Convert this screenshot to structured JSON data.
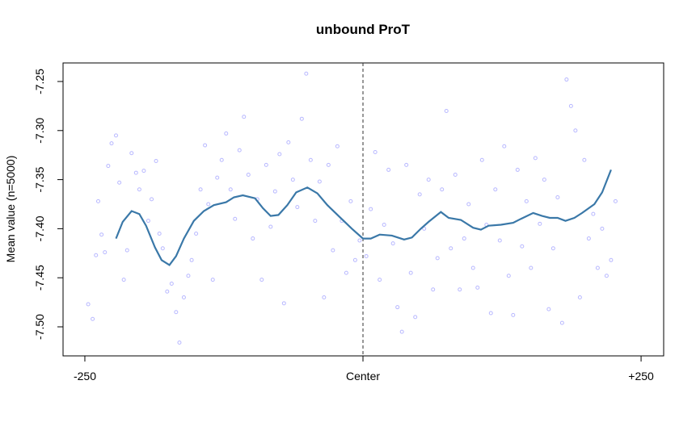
{
  "chart_data": {
    "type": "scatter",
    "title": "unbound ProT",
    "ylabel": "Mean value (n=5000)",
    "xlim": [
      -269.6,
      270.3
    ],
    "ylim": [
      -7.5296,
      -7.2311
    ],
    "xticks": [
      -250,
      {
        "value": 0,
        "label": "Center"
      },
      {
        "value": 250,
        "label": "+250"
      }
    ],
    "yticks": [
      -7.25,
      {
        "value": -7.3,
        "label": "-7.30"
      },
      -7.35,
      {
        "value": -7.4,
        "label": "-7.40"
      },
      -7.45,
      {
        "value": -7.5,
        "label": "-7.50"
      }
    ],
    "vline": 0,
    "points": {
      "color": "#b8b8ff",
      "x": [
        -247,
        -243,
        -240,
        -238,
        -235,
        -232,
        -229,
        -226,
        -222,
        -219,
        -215,
        -212,
        -208,
        -204,
        -201,
        -197,
        -193,
        -190,
        -186,
        -183,
        -180,
        -176,
        -172,
        -168,
        -165,
        -161,
        -157,
        -154,
        -150,
        -146,
        -142,
        -139,
        -135,
        -131,
        -127,
        -123,
        -119,
        -115,
        -111,
        -107,
        -103,
        -99,
        -95,
        -91,
        -87,
        -83,
        -79,
        -75,
        -71,
        -67,
        -63,
        -59,
        -55,
        -51,
        -47,
        -43,
        -39,
        -35,
        -31,
        -27,
        -23,
        -19,
        -15,
        -11,
        -7,
        -3,
        3,
        7,
        11,
        15,
        19,
        23,
        27,
        31,
        35,
        39,
        43,
        47,
        51,
        55,
        59,
        63,
        67,
        71,
        75,
        79,
        83,
        87,
        91,
        95,
        99,
        103,
        107,
        111,
        115,
        119,
        123,
        127,
        131,
        135,
        139,
        143,
        147,
        151,
        155,
        159,
        163,
        167,
        171,
        175,
        179,
        183,
        187,
        191,
        195,
        199,
        203,
        207,
        211,
        215,
        219,
        223,
        227
      ],
      "values": [
        -7.477,
        -7.492,
        -7.427,
        -7.372,
        -7.406,
        -7.424,
        -7.336,
        -7.313,
        -7.305,
        -7.353,
        -7.452,
        -7.422,
        -7.323,
        -7.343,
        -7.36,
        -7.341,
        -7.392,
        -7.37,
        -7.331,
        -7.405,
        -7.42,
        -7.464,
        -7.456,
        -7.485,
        -7.516,
        -7.47,
        -7.448,
        -7.432,
        -7.405,
        -7.36,
        -7.315,
        -7.375,
        -7.452,
        -7.348,
        -7.33,
        -7.303,
        -7.36,
        -7.39,
        -7.32,
        -7.286,
        -7.345,
        -7.41,
        -7.37,
        -7.452,
        -7.335,
        -7.398,
        -7.362,
        -7.324,
        -7.476,
        -7.312,
        -7.35,
        -7.378,
        -7.288,
        -7.242,
        -7.33,
        -7.392,
        -7.352,
        -7.47,
        -7.335,
        -7.422,
        -7.316,
        -7.392,
        -7.445,
        -7.372,
        -7.432,
        -7.412,
        -7.428,
        -7.38,
        -7.322,
        -7.452,
        -7.396,
        -7.34,
        -7.415,
        -7.48,
        -7.505,
        -7.335,
        -7.445,
        -7.49,
        -7.365,
        -7.4,
        -7.35,
        -7.462,
        -7.43,
        -7.36,
        -7.28,
        -7.42,
        -7.345,
        -7.462,
        -7.41,
        -7.375,
        -7.44,
        -7.46,
        -7.33,
        -7.396,
        -7.486,
        -7.36,
        -7.412,
        -7.316,
        -7.448,
        -7.488,
        -7.34,
        -7.418,
        -7.372,
        -7.44,
        -7.328,
        -7.395,
        -7.35,
        -7.482,
        -7.42,
        -7.368,
        -7.496,
        -7.248,
        -7.275,
        -7.3,
        -7.47,
        -7.33,
        -7.41,
        -7.385,
        -7.44,
        -7.4,
        -7.448,
        -7.432,
        -7.372
      ]
    },
    "line": {
      "color": "#3a78a8",
      "x": [
        -222,
        -216,
        -208,
        -201,
        -195,
        -187,
        -181,
        -174,
        -168,
        -161,
        -152,
        -143,
        -134,
        -123,
        -116,
        -108,
        -97,
        -90,
        -83,
        -76,
        -68,
        -60,
        -50,
        -41,
        -32,
        -21,
        -10,
        0,
        7,
        15,
        26,
        37,
        44,
        52,
        59,
        70,
        77,
        88,
        99,
        106,
        113,
        124,
        135,
        142,
        153,
        161,
        168,
        175,
        182,
        190,
        197,
        208,
        215,
        223
      ],
      "values": [
        -7.41,
        -7.393,
        -7.382,
        -7.385,
        -7.397,
        -7.419,
        -7.432,
        -7.437,
        -7.428,
        -7.41,
        -7.392,
        -7.382,
        -7.376,
        -7.373,
        -7.368,
        -7.366,
        -7.369,
        -7.379,
        -7.387,
        -7.386,
        -7.376,
        -7.363,
        -7.358,
        -7.364,
        -7.376,
        -7.388,
        -7.4,
        -7.41,
        -7.41,
        -7.406,
        -7.407,
        -7.411,
        -7.409,
        -7.4,
        -7.393,
        -7.383,
        -7.389,
        -7.391,
        -7.399,
        -7.401,
        -7.397,
        -7.396,
        -7.394,
        -7.39,
        -7.384,
        -7.387,
        -7.389,
        -7.389,
        -7.392,
        -7.389,
        -7.384,
        -7.375,
        -7.363,
        -7.34
      ]
    }
  }
}
